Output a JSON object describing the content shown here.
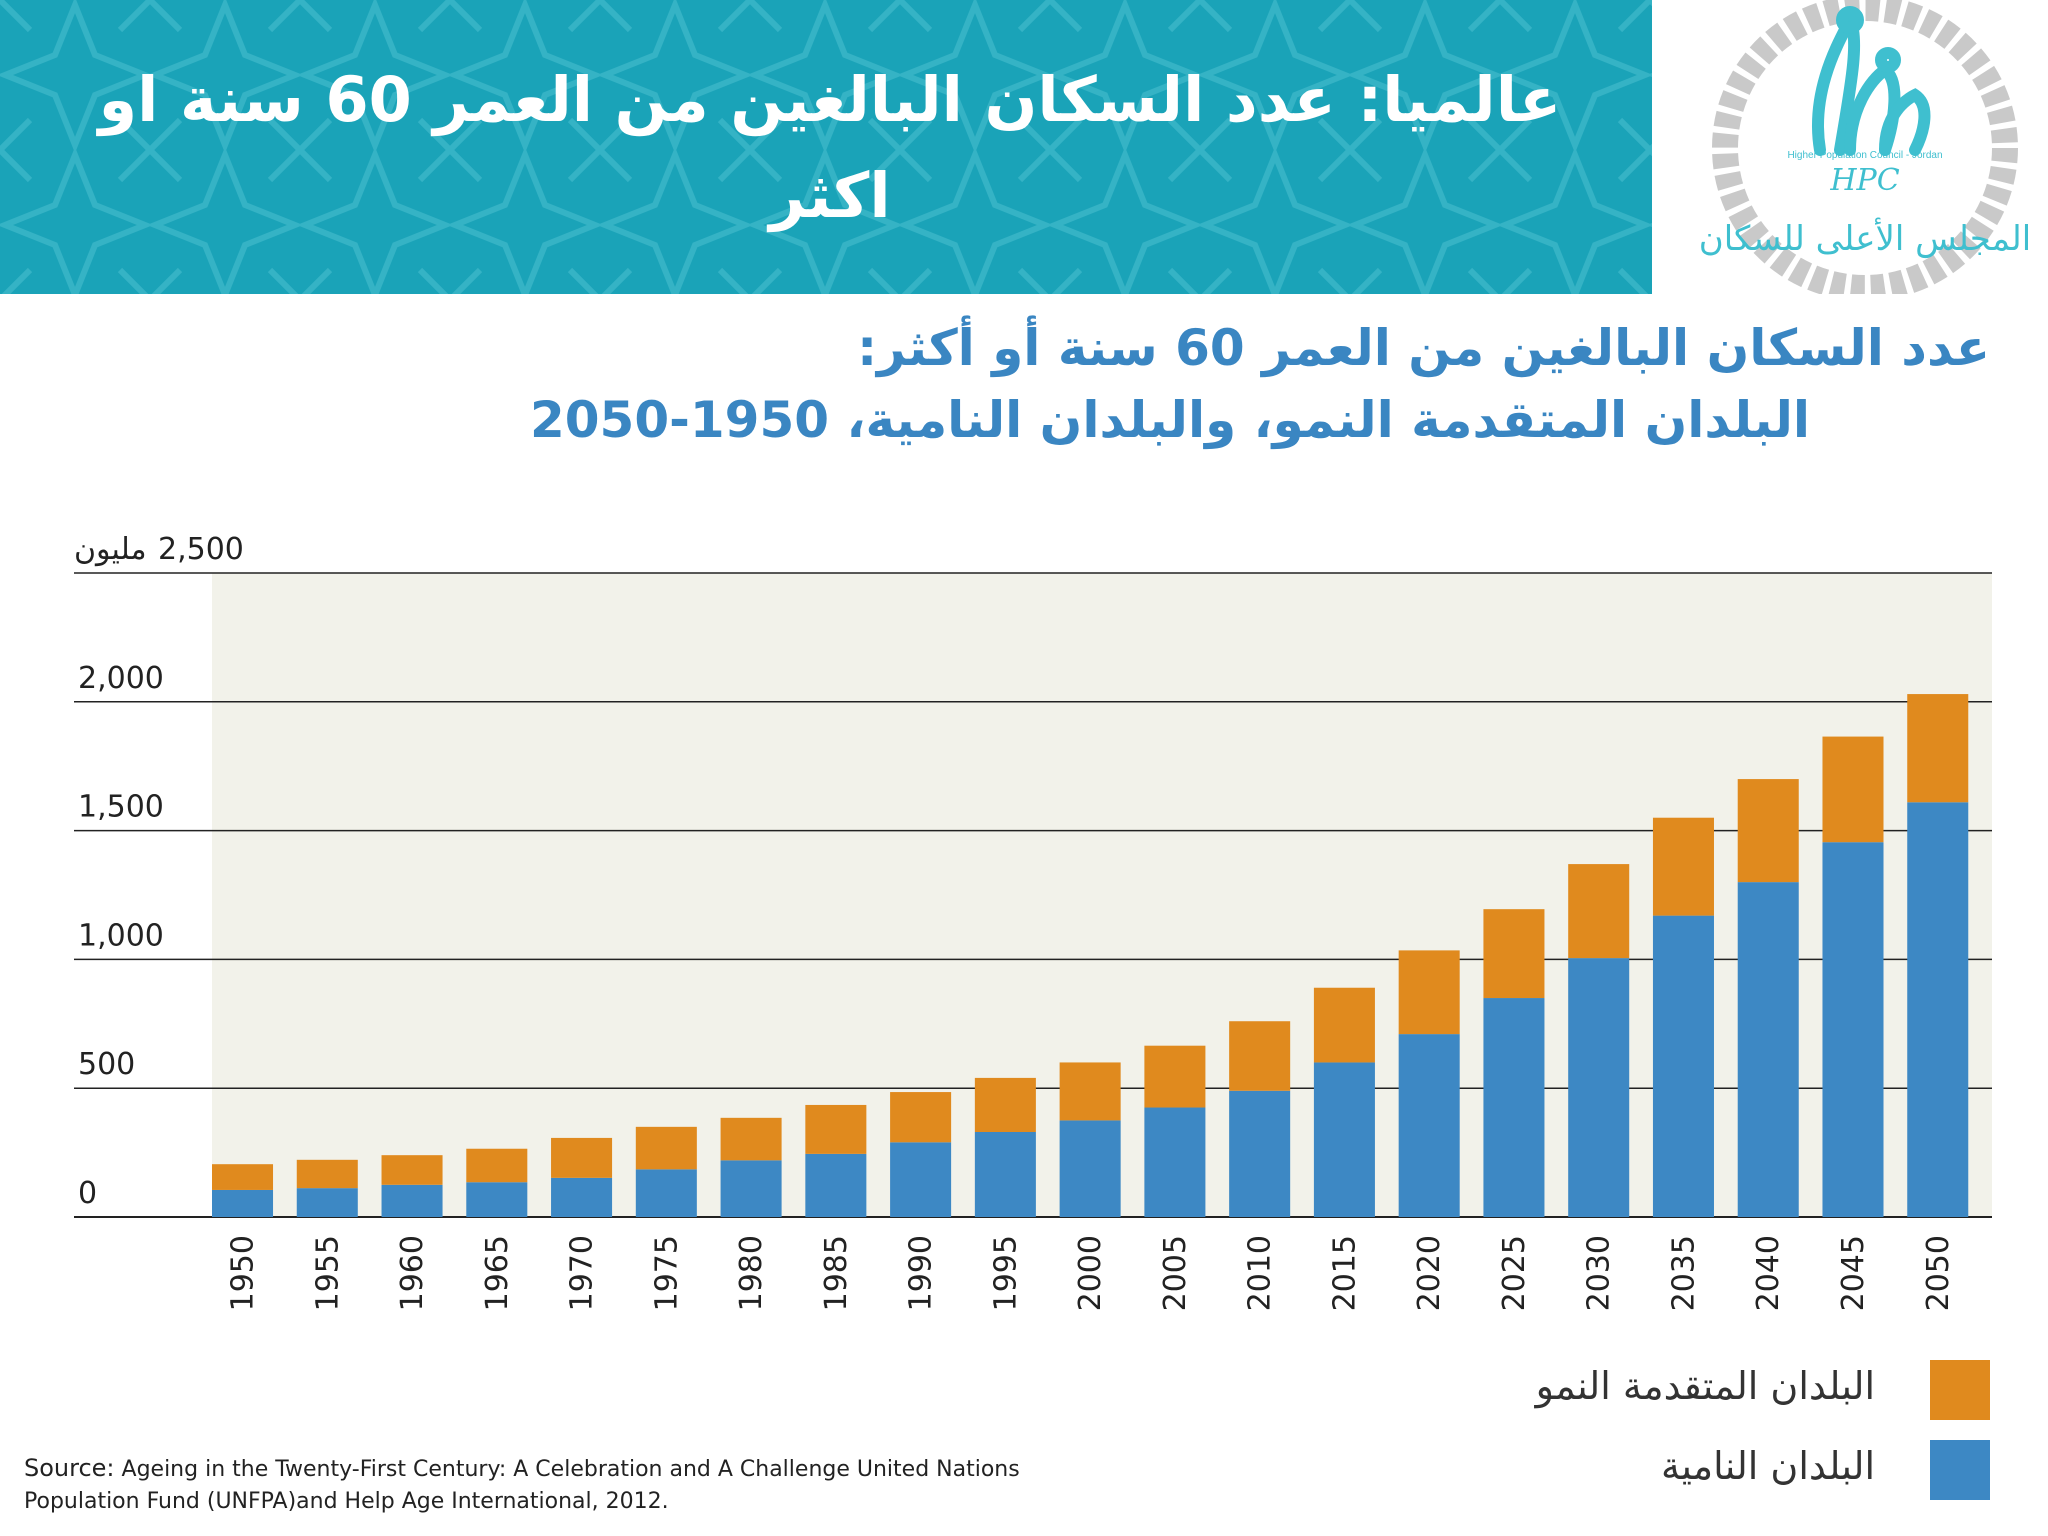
{
  "banner": {
    "title": "عالميا: عدد السكان البالغين من العمر 60 سنة او اكثر"
  },
  "logo": {
    "english_text": "Higher Population Council - Jordan",
    "abbreviation": "HPC",
    "arabic_text": "المجلس الأعلى للسكان"
  },
  "chart_title": {
    "line1": "عدد السكان البالغين من العمر 60 سنة أو أكثر:",
    "line2": "البلدان المتقدمة النمو، والبلدان النامية، 1950-2050"
  },
  "source": {
    "label": "Source:",
    "text": "Ageing in the Twenty-First Century: A Celebration and A Challenge United Nations Population Fund (UNFPA)and Help Age International, 2012."
  },
  "colors": {
    "developed": "#e08a1e",
    "developing": "#3d88c4",
    "plot_bg": "#f2f2ea",
    "banner": "#1aa3b8"
  },
  "chart_data": {
    "type": "bar",
    "stacked": true,
    "y_unit_label": "مليون",
    "ylim": [
      0,
      2500
    ],
    "y_ticks": [
      0,
      500,
      1000,
      1500,
      2000,
      2500
    ],
    "y_tick_labels": [
      "0",
      "500",
      "1,000",
      "1,500",
      "2,000",
      "2,500"
    ],
    "categories": [
      "1950",
      "1955",
      "1960",
      "1965",
      "1970",
      "1975",
      "1980",
      "1985",
      "1990",
      "1995",
      "2000",
      "2005",
      "2010",
      "2015",
      "2020",
      "2025",
      "2030",
      "2035",
      "2040",
      "2045",
      "2050"
    ],
    "series": [
      {
        "name": "البلدان النامية",
        "color": "#3d88c4",
        "values": [
          105,
          112,
          125,
          135,
          152,
          185,
          220,
          245,
          290,
          330,
          375,
          425,
          490,
          600,
          710,
          850,
          1005,
          1170,
          1300,
          1455,
          1610
        ]
      },
      {
        "name": "البلدان المتقدمة النمو",
        "color": "#e08a1e",
        "values": [
          100,
          110,
          115,
          130,
          155,
          165,
          165,
          190,
          195,
          210,
          225,
          240,
          270,
          290,
          325,
          345,
          365,
          380,
          400,
          410,
          420
        ]
      }
    ],
    "legend_position": "bottom-right",
    "grid": true
  }
}
